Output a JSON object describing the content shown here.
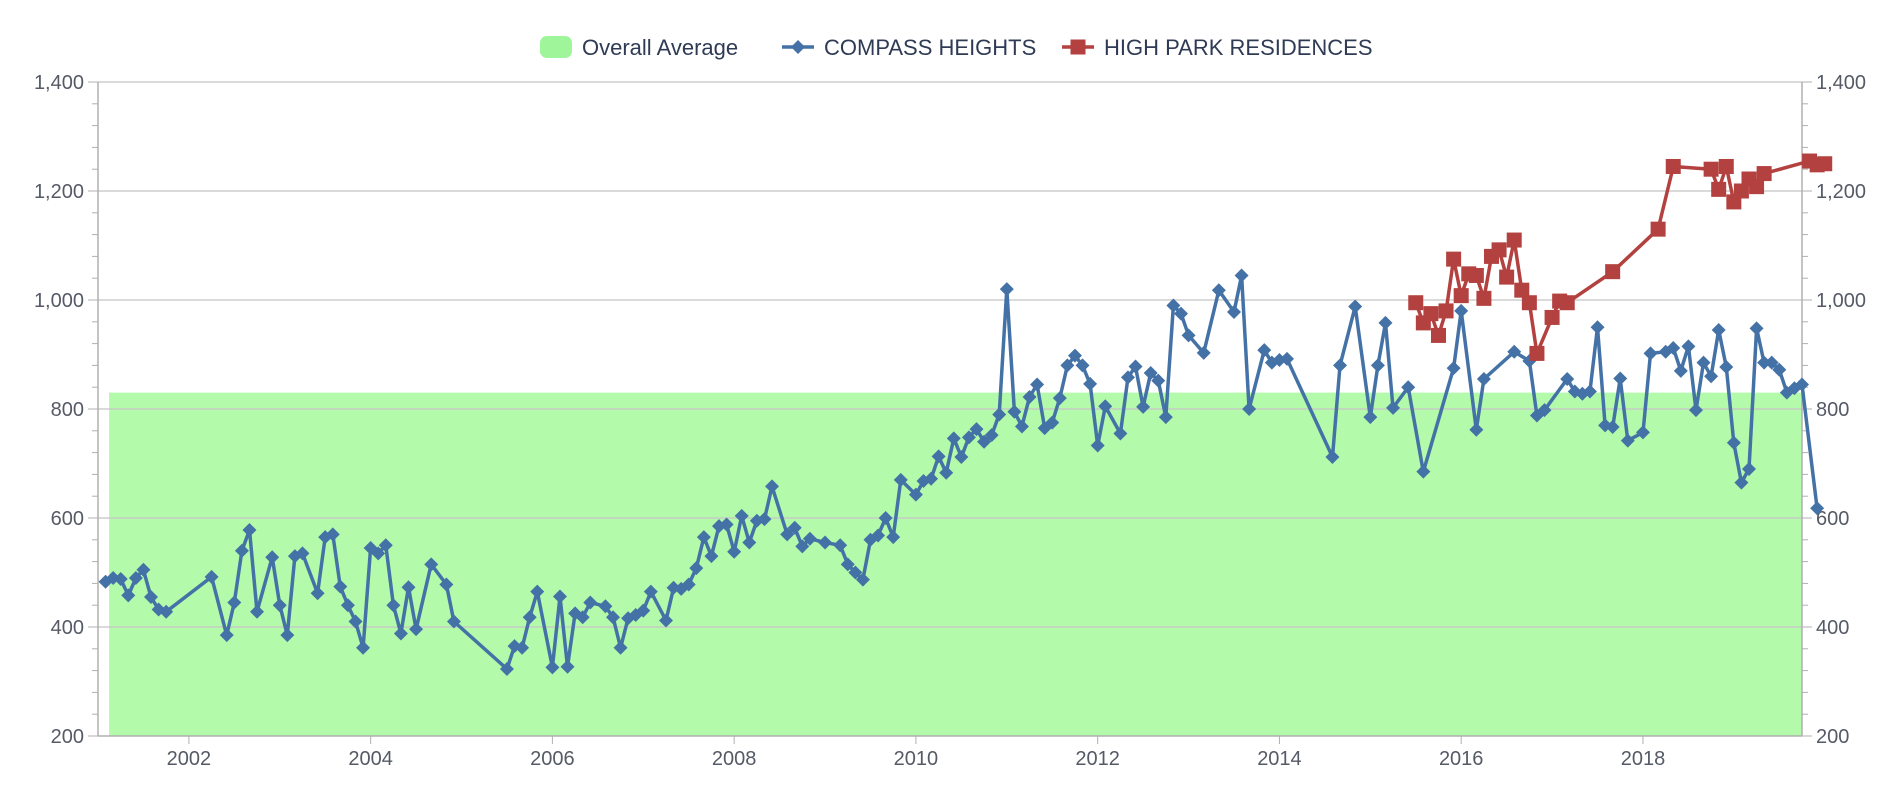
{
  "chart_data": {
    "type": "line",
    "title": "",
    "xlabel": "",
    "ylabel": "",
    "x_axis": {
      "type": "date",
      "range": [
        "2001-01-01",
        "2019-10-01"
      ],
      "tick_labels": [
        "2002",
        "2004",
        "2006",
        "2008",
        "2010",
        "2012",
        "2014",
        "2016",
        "2018"
      ]
    },
    "y_axis": {
      "range": [
        200,
        1400
      ],
      "tick_labels": [
        "200",
        "400",
        "600",
        "800",
        "1,000",
        "1,200",
        "1,400"
      ],
      "secondary_axis_mirrored": true
    },
    "grid": true,
    "legend_position": "top-center",
    "colors": {
      "average_fill": "#b3fbaa",
      "average_legend": "#9ff59a",
      "compass": "#4472a6",
      "high_park": "#b3413f",
      "grid": "#c8c8c8",
      "axis": "#b0b0b0"
    },
    "legend": [
      {
        "label": "Overall Average",
        "symbol": "area"
      },
      {
        "label": "COMPASS HEIGHTS",
        "symbol": "diamond"
      },
      {
        "label": "HIGH PARK RESIDENCES",
        "symbol": "square"
      }
    ],
    "average": {
      "name": "Overall Average",
      "value": 830,
      "x_start": "2001-02-15",
      "x_end": "2019-10-01"
    },
    "series": [
      {
        "name": "COMPASS HEIGHTS",
        "marker": "diamond",
        "points": [
          [
            "2001-02",
            483
          ],
          [
            "2001-03",
            490
          ],
          [
            "2001-04",
            488
          ],
          [
            "2001-05",
            458
          ],
          [
            "2001-06",
            490
          ],
          [
            "2001-07",
            505
          ],
          [
            "2001-08",
            455
          ],
          [
            "2001-09",
            432
          ],
          [
            "2001-10",
            428
          ],
          [
            "2002-04",
            492
          ],
          [
            "2002-06",
            385
          ],
          [
            "2002-07",
            445
          ],
          [
            "2002-08",
            540
          ],
          [
            "2002-09",
            578
          ],
          [
            "2002-10",
            428
          ],
          [
            "2002-12",
            528
          ],
          [
            "2003-01",
            440
          ],
          [
            "2003-02",
            385
          ],
          [
            "2003-03",
            530
          ],
          [
            "2003-04",
            535
          ],
          [
            "2003-06",
            462
          ],
          [
            "2003-07",
            565
          ],
          [
            "2003-08",
            570
          ],
          [
            "2003-09",
            474
          ],
          [
            "2003-10",
            440
          ],
          [
            "2003-11",
            410
          ],
          [
            "2003-12",
            362
          ],
          [
            "2004-01",
            545
          ],
          [
            "2004-02",
            535
          ],
          [
            "2004-03",
            550
          ],
          [
            "2004-04",
            440
          ],
          [
            "2004-05",
            388
          ],
          [
            "2004-06",
            473
          ],
          [
            "2004-07",
            396
          ],
          [
            "2004-09",
            515
          ],
          [
            "2004-11",
            478
          ],
          [
            "2004-12",
            410
          ],
          [
            "2005-07",
            323
          ],
          [
            "2005-08",
            365
          ],
          [
            "2005-09",
            362
          ],
          [
            "2005-10",
            418
          ],
          [
            "2005-11",
            465
          ],
          [
            "2006-01",
            326
          ],
          [
            "2006-02",
            456
          ],
          [
            "2006-03",
            327
          ],
          [
            "2006-04",
            425
          ],
          [
            "2006-05",
            418
          ],
          [
            "2006-06",
            445
          ],
          [
            "2006-08",
            438
          ],
          [
            "2006-09",
            418
          ],
          [
            "2006-10",
            362
          ],
          [
            "2006-11",
            416
          ],
          [
            "2006-12",
            422
          ],
          [
            "2007-01",
            430
          ],
          [
            "2007-02",
            465
          ],
          [
            "2007-04",
            412
          ],
          [
            "2007-05",
            472
          ],
          [
            "2007-06",
            470
          ],
          [
            "2007-07",
            478
          ],
          [
            "2007-08",
            508
          ],
          [
            "2007-09",
            565
          ],
          [
            "2007-10",
            530
          ],
          [
            "2007-11",
            585
          ],
          [
            "2007-12",
            588
          ],
          [
            "2008-01",
            538
          ],
          [
            "2008-02",
            604
          ],
          [
            "2008-03",
            555
          ],
          [
            "2008-04",
            595
          ],
          [
            "2008-05",
            598
          ],
          [
            "2008-06",
            658
          ],
          [
            "2008-08",
            570
          ],
          [
            "2008-09",
            582
          ],
          [
            "2008-10",
            548
          ],
          [
            "2008-11",
            562
          ],
          [
            "2009-01",
            555
          ],
          [
            "2009-03",
            550
          ],
          [
            "2009-04",
            515
          ],
          [
            "2009-05",
            500
          ],
          [
            "2009-06",
            487
          ],
          [
            "2009-07",
            560
          ],
          [
            "2009-08",
            568
          ],
          [
            "2009-09",
            600
          ],
          [
            "2009-10",
            565
          ],
          [
            "2009-11",
            670
          ],
          [
            "2010-01",
            643
          ],
          [
            "2010-02",
            668
          ],
          [
            "2010-03",
            672
          ],
          [
            "2010-04",
            713
          ],
          [
            "2010-05",
            683
          ],
          [
            "2010-06",
            746
          ],
          [
            "2010-07",
            712
          ],
          [
            "2010-08",
            748
          ],
          [
            "2010-09",
            763
          ],
          [
            "2010-10",
            740
          ],
          [
            "2010-11",
            752
          ],
          [
            "2010-12",
            790
          ],
          [
            "2011-01",
            1020
          ],
          [
            "2011-02",
            795
          ],
          [
            "2011-03",
            768
          ],
          [
            "2011-04",
            822
          ],
          [
            "2011-05",
            845
          ],
          [
            "2011-06",
            765
          ],
          [
            "2011-07",
            775
          ],
          [
            "2011-08",
            820
          ],
          [
            "2011-09",
            880
          ],
          [
            "2011-10",
            898
          ],
          [
            "2011-11",
            880
          ],
          [
            "2011-12",
            846
          ],
          [
            "2012-01",
            733
          ],
          [
            "2012-02",
            805
          ],
          [
            "2012-04",
            755
          ],
          [
            "2012-05",
            858
          ],
          [
            "2012-06",
            878
          ],
          [
            "2012-07",
            804
          ],
          [
            "2012-08",
            866
          ],
          [
            "2012-09",
            852
          ],
          [
            "2012-10",
            785
          ],
          [
            "2012-11",
            990
          ],
          [
            "2012-12",
            975
          ],
          [
            "2013-01",
            935
          ],
          [
            "2013-03",
            903
          ],
          [
            "2013-05",
            1018
          ],
          [
            "2013-07",
            978
          ],
          [
            "2013-08",
            1045
          ],
          [
            "2013-09",
            800
          ],
          [
            "2013-11",
            908
          ],
          [
            "2013-12",
            885
          ],
          [
            "2014-01",
            890
          ],
          [
            "2014-02",
            892
          ],
          [
            "2014-08",
            712
          ],
          [
            "2014-09",
            880
          ],
          [
            "2014-11",
            988
          ],
          [
            "2015-01",
            785
          ],
          [
            "2015-02",
            880
          ],
          [
            "2015-03",
            958
          ],
          [
            "2015-04",
            802
          ],
          [
            "2015-06",
            840
          ],
          [
            "2015-08",
            685
          ],
          [
            "2015-12",
            875
          ],
          [
            "2016-01",
            980
          ],
          [
            "2016-03",
            762
          ],
          [
            "2016-04",
            855
          ],
          [
            "2016-08",
            905
          ],
          [
            "2016-10",
            888
          ],
          [
            "2016-11",
            788
          ],
          [
            "2016-12",
            798
          ],
          [
            "2017-03",
            855
          ],
          [
            "2017-04",
            832
          ],
          [
            "2017-05",
            828
          ],
          [
            "2017-06",
            832
          ],
          [
            "2017-07",
            950
          ],
          [
            "2017-08",
            770
          ],
          [
            "2017-09",
            767
          ],
          [
            "2017-10",
            856
          ],
          [
            "2017-11",
            742
          ],
          [
            "2018-01",
            757
          ],
          [
            "2018-02",
            902
          ],
          [
            "2018-04",
            905
          ],
          [
            "2018-05",
            912
          ],
          [
            "2018-06",
            870
          ],
          [
            "2018-07",
            915
          ],
          [
            "2018-08",
            798
          ],
          [
            "2018-09",
            885
          ],
          [
            "2018-10",
            860
          ],
          [
            "2018-11",
            945
          ],
          [
            "2018-12",
            877
          ],
          [
            "2019-01",
            738
          ],
          [
            "2019-02",
            665
          ],
          [
            "2019-03",
            690
          ],
          [
            "2019-04",
            948
          ],
          [
            "2019-05",
            885
          ],
          [
            "2019-06",
            885
          ],
          [
            "2019-07",
            872
          ],
          [
            "2019-08",
            830
          ],
          [
            "2019-09",
            838
          ],
          [
            "2019-10",
            845
          ],
          [
            "2019-12",
            618
          ]
        ]
      },
      {
        "name": "HIGH PARK RESIDENCES",
        "marker": "square",
        "points": [
          [
            "2015-07",
            995
          ],
          [
            "2015-08",
            958
          ],
          [
            "2015-09",
            975
          ],
          [
            "2015-10",
            935
          ],
          [
            "2015-11",
            980
          ],
          [
            "2015-12",
            1075
          ],
          [
            "2016-01",
            1008
          ],
          [
            "2016-02",
            1048
          ],
          [
            "2016-03",
            1045
          ],
          [
            "2016-04",
            1003
          ],
          [
            "2016-05",
            1080
          ],
          [
            "2016-06",
            1092
          ],
          [
            "2016-07",
            1042
          ],
          [
            "2016-08",
            1110
          ],
          [
            "2016-09",
            1018
          ],
          [
            "2016-10",
            995
          ],
          [
            "2016-11",
            902
          ],
          [
            "2017-01",
            968
          ],
          [
            "2017-02",
            998
          ],
          [
            "2017-03",
            995
          ],
          [
            "2017-09",
            1052
          ],
          [
            "2018-03",
            1130
          ],
          [
            "2018-05",
            1245
          ],
          [
            "2018-10",
            1240
          ],
          [
            "2018-11",
            1203
          ],
          [
            "2018-12",
            1245
          ],
          [
            "2019-01",
            1180
          ],
          [
            "2019-02",
            1200
          ],
          [
            "2019-03",
            1222
          ],
          [
            "2019-04",
            1208
          ],
          [
            "2019-05",
            1232
          ],
          [
            "2019-11",
            1255
          ],
          [
            "2019-12",
            1248
          ],
          [
            "2020-01",
            1250
          ]
        ]
      }
    ]
  }
}
